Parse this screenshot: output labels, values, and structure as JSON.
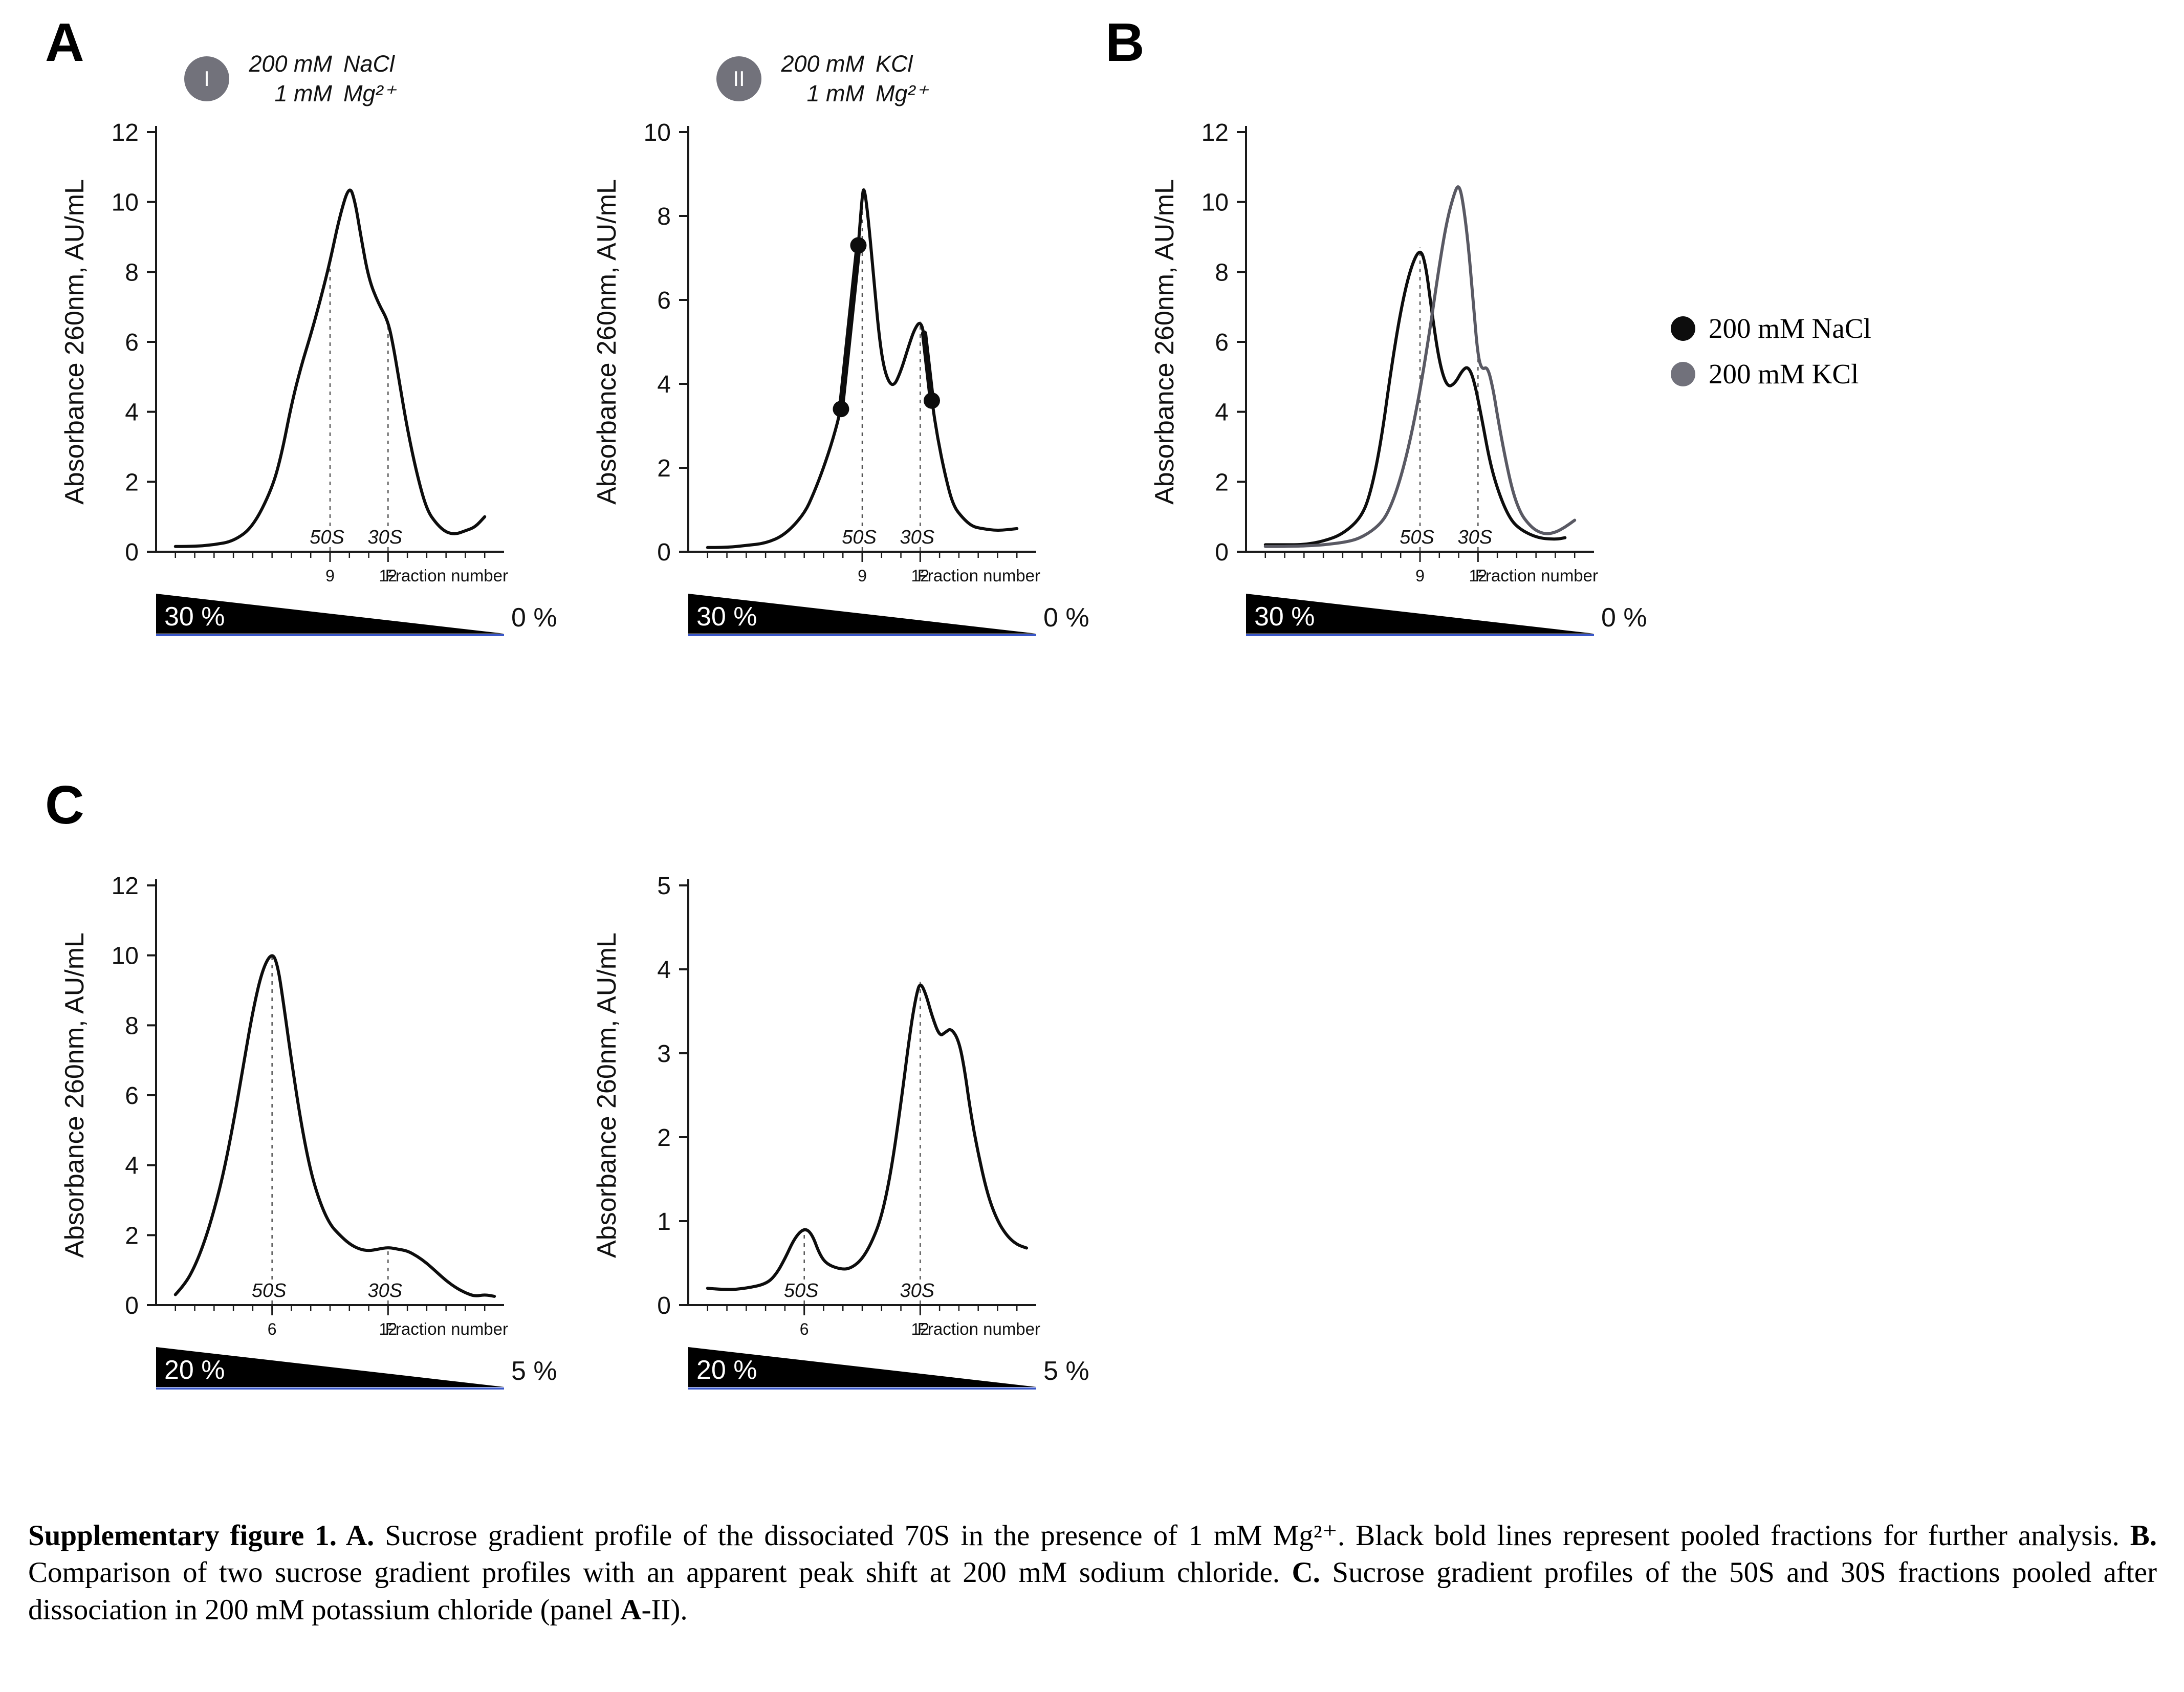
{
  "figure": {
    "panels": [
      "A",
      "B",
      "C"
    ]
  },
  "legend": {
    "items": [
      {
        "label": "200 mM NaCl",
        "color": "#0d0d0d"
      },
      {
        "label": "200 mM KCl",
        "color": "#71717b"
      }
    ]
  },
  "caption": {
    "runs": [
      {
        "t": "Supplementary figure 1. ",
        "b": 1
      },
      {
        "t": "A. ",
        "b": 1
      },
      {
        "t": "Sucrose gradient profile of the dissociated 70S in the presence of 1 mM Mg²⁺. Black bold lines represent pooled fractions for further analysis. ",
        "b": 0
      },
      {
        "t": "B. ",
        "b": 1
      },
      {
        "t": "Comparison of two sucrose gradient profiles with an apparent peak shift at 200 mM sodium chloride. ",
        "b": 0
      },
      {
        "t": "C. ",
        "b": 1
      },
      {
        "t": "Sucrose gradient profiles of the 50S and 30S fractions pooled after dissociation in 200 mM potassium chloride (panel ",
        "b": 0
      },
      {
        "t": "A",
        "b": 1
      },
      {
        "t": "-II).",
        "b": 0
      }
    ]
  },
  "chart_data": [
    {
      "type": "line",
      "panel": "A-I",
      "header": {
        "badge": "I",
        "rows": [
          [
            "200 mM",
            "NaCl"
          ],
          [
            "1 mM",
            "Mg²⁺"
          ]
        ]
      },
      "ylabel": "Absorbance 260nm, AU/mL",
      "xlabel": "Fraction number",
      "ylim": [
        0,
        12
      ],
      "yticks": [
        0,
        2,
        4,
        6,
        8,
        10,
        12
      ],
      "xlim": [
        0,
        18
      ],
      "xticks": [
        9,
        12
      ],
      "annotations": [
        {
          "x": 9,
          "label": "50S"
        },
        {
          "x": 12,
          "label": "30S"
        }
      ],
      "series": [
        {
          "name": "200 mM NaCl / 1 mM Mg2+",
          "color": "#0d0d0d",
          "width": 6,
          "points": [
            [
              1,
              0.15
            ],
            [
              2,
              0.15
            ],
            [
              3,
              0.2
            ],
            [
              4,
              0.3
            ],
            [
              5,
              0.7
            ],
            [
              6,
              1.8
            ],
            [
              6.5,
              2.8
            ],
            [
              7,
              4.2
            ],
            [
              7.5,
              5.3
            ],
            [
              8,
              6.2
            ],
            [
              8.5,
              7.2
            ],
            [
              9,
              8.3
            ],
            [
              9.5,
              9.6
            ],
            [
              10,
              10.5
            ],
            [
              10.3,
              10.0
            ],
            [
              10.6,
              9.0
            ],
            [
              11,
              7.8
            ],
            [
              11.5,
              7.1
            ],
            [
              12,
              6.6
            ],
            [
              12.3,
              5.8
            ],
            [
              12.6,
              4.8
            ],
            [
              13,
              3.5
            ],
            [
              13.5,
              2.2
            ],
            [
              14,
              1.2
            ],
            [
              14.5,
              0.8
            ],
            [
              15,
              0.55
            ],
            [
              15.5,
              0.5
            ],
            [
              16,
              0.6
            ],
            [
              16.5,
              0.7
            ],
            [
              17,
              1.0
            ]
          ]
        }
      ],
      "gradient": {
        "left": "30 %",
        "right": "0 %"
      }
    },
    {
      "type": "line",
      "panel": "A-II",
      "header": {
        "badge": "II",
        "rows": [
          [
            "200 mM",
            "KCl"
          ],
          [
            "1 mM",
            "Mg²⁺"
          ]
        ]
      },
      "ylabel": "Absorbance 260nm, AU/mL",
      "xlabel": "Fraction number",
      "ylim": [
        0,
        10
      ],
      "yticks": [
        0,
        2,
        4,
        6,
        8,
        10
      ],
      "xlim": [
        0,
        18
      ],
      "xticks": [
        9,
        12
      ],
      "annotations": [
        {
          "x": 9,
          "label": "50S"
        },
        {
          "x": 12,
          "label": "30S"
        }
      ],
      "series": [
        {
          "name": "200 mM KCl / 1 mM Mg2+",
          "color": "#0d0d0d",
          "width": 6,
          "points": [
            [
              1,
              0.1
            ],
            [
              2,
              0.1
            ],
            [
              3,
              0.15
            ],
            [
              4,
              0.2
            ],
            [
              5,
              0.4
            ],
            [
              6,
              0.9
            ],
            [
              6.5,
              1.4
            ],
            [
              7,
              2.0
            ],
            [
              7.5,
              2.7
            ],
            [
              7.9,
              3.4
            ],
            [
              8.3,
              4.8
            ],
            [
              8.6,
              6.3
            ],
            [
              8.8,
              7.3
            ],
            [
              9,
              8.5
            ],
            [
              9.1,
              8.7
            ],
            [
              9.3,
              8.0
            ],
            [
              9.6,
              6.5
            ],
            [
              9.9,
              5.0
            ],
            [
              10.2,
              4.2
            ],
            [
              10.6,
              3.9
            ],
            [
              11,
              4.3
            ],
            [
              11.4,
              4.9
            ],
            [
              11.7,
              5.3
            ],
            [
              12,
              5.5
            ],
            [
              12.2,
              5.2
            ],
            [
              12.6,
              3.6
            ],
            [
              12.9,
              2.7
            ],
            [
              13.3,
              1.8
            ],
            [
              13.7,
              1.1
            ],
            [
              14.2,
              0.8
            ],
            [
              14.7,
              0.6
            ],
            [
              15.2,
              0.55
            ],
            [
              16,
              0.5
            ],
            [
              17,
              0.55
            ]
          ]
        }
      ],
      "markers": [
        [
          7.9,
          3.4
        ],
        [
          8.8,
          7.3
        ],
        [
          12.6,
          3.6
        ]
      ],
      "bold_segments": [
        [
          [
            7.9,
            3.4
          ],
          [
            8.8,
            7.3
          ]
        ],
        [
          [
            12.2,
            5.2
          ],
          [
            12.6,
            3.6
          ]
        ]
      ],
      "gradient": {
        "left": "30 %",
        "right": "0 %"
      }
    },
    {
      "type": "line",
      "panel": "B",
      "ylabel": "Absorbance 260nm, AU/mL",
      "xlabel": "Fraction number",
      "ylim": [
        0,
        12
      ],
      "yticks": [
        0,
        2,
        4,
        6,
        8,
        10,
        12
      ],
      "xlim": [
        0,
        18
      ],
      "xticks": [
        9,
        12
      ],
      "annotations": [
        {
          "x": 9,
          "label": "50S",
          "series": 0
        },
        {
          "x": 12,
          "label": "30S",
          "series": 1
        }
      ],
      "series": [
        {
          "name": "200 mM NaCl",
          "color": "#0d0d0d",
          "width": 6,
          "points": [
            [
              1,
              0.2
            ],
            [
              2,
              0.2
            ],
            [
              3,
              0.2
            ],
            [
              4,
              0.3
            ],
            [
              5,
              0.5
            ],
            [
              6,
              1.0
            ],
            [
              6.5,
              1.8
            ],
            [
              7,
              3.2
            ],
            [
              7.5,
              5.2
            ],
            [
              8,
              6.9
            ],
            [
              8.5,
              8.1
            ],
            [
              9,
              8.7
            ],
            [
              9.3,
              8.2
            ],
            [
              9.6,
              6.9
            ],
            [
              10,
              5.4
            ],
            [
              10.4,
              4.7
            ],
            [
              10.8,
              4.8
            ],
            [
              11.2,
              5.2
            ],
            [
              11.5,
              5.3
            ],
            [
              11.8,
              4.9
            ],
            [
              12.2,
              3.8
            ],
            [
              12.6,
              2.6
            ],
            [
              13,
              1.8
            ],
            [
              13.5,
              1.1
            ],
            [
              14,
              0.7
            ],
            [
              15,
              0.4
            ],
            [
              16,
              0.35
            ],
            [
              16.5,
              0.4
            ]
          ]
        },
        {
          "name": "200 mM KCl",
          "color": "#595963",
          "width": 6,
          "points": [
            [
              1,
              0.15
            ],
            [
              3,
              0.15
            ],
            [
              5,
              0.25
            ],
            [
              6,
              0.4
            ],
            [
              7,
              0.8
            ],
            [
              7.5,
              1.3
            ],
            [
              8,
              2.1
            ],
            [
              8.5,
              3.2
            ],
            [
              9,
              4.6
            ],
            [
              9.5,
              6.3
            ],
            [
              10,
              8.2
            ],
            [
              10.4,
              9.5
            ],
            [
              10.8,
              10.3
            ],
            [
              11,
              10.5
            ],
            [
              11.2,
              10.1
            ],
            [
              11.5,
              8.8
            ],
            [
              11.8,
              6.8
            ],
            [
              12,
              5.6
            ],
            [
              12.2,
              5.2
            ],
            [
              12.5,
              5.3
            ],
            [
              12.8,
              4.6
            ],
            [
              13,
              3.9
            ],
            [
              13.4,
              2.7
            ],
            [
              13.8,
              1.7
            ],
            [
              14.2,
              1.1
            ],
            [
              14.6,
              0.8
            ],
            [
              15,
              0.6
            ],
            [
              15.5,
              0.5
            ],
            [
              16,
              0.55
            ],
            [
              16.5,
              0.7
            ],
            [
              17,
              0.9
            ]
          ]
        }
      ],
      "gradient": {
        "left": "30 %",
        "right": "0 %"
      }
    },
    {
      "type": "line",
      "panel": "C-left",
      "ylabel": "Absorbance 260nm, AU/mL",
      "xlabel": "Fraction number",
      "ylim": [
        0,
        12
      ],
      "yticks": [
        0,
        2,
        4,
        6,
        8,
        10,
        12
      ],
      "xlim": [
        0,
        18
      ],
      "xticks": [
        6,
        12
      ],
      "annotations": [
        {
          "x": 6,
          "label": "50S"
        },
        {
          "x": 12,
          "label": "30S"
        }
      ],
      "series": [
        {
          "name": "pooled 50S fraction",
          "color": "#0d0d0d",
          "width": 6,
          "points": [
            [
              1,
              0.3
            ],
            [
              1.5,
              0.6
            ],
            [
              2,
              1.1
            ],
            [
              2.5,
              1.8
            ],
            [
              3,
              2.7
            ],
            [
              3.5,
              3.8
            ],
            [
              4,
              5.2
            ],
            [
              4.5,
              6.8
            ],
            [
              5,
              8.4
            ],
            [
              5.5,
              9.6
            ],
            [
              6,
              10.1
            ],
            [
              6.3,
              9.7
            ],
            [
              6.6,
              8.6
            ],
            [
              7,
              7.0
            ],
            [
              7.5,
              5.2
            ],
            [
              8,
              3.8
            ],
            [
              8.5,
              2.9
            ],
            [
              9,
              2.3
            ],
            [
              9.5,
              2.0
            ],
            [
              10,
              1.75
            ],
            [
              10.5,
              1.6
            ],
            [
              11,
              1.55
            ],
            [
              11.5,
              1.6
            ],
            [
              12,
              1.65
            ],
            [
              12.5,
              1.6
            ],
            [
              13,
              1.55
            ],
            [
              13.5,
              1.4
            ],
            [
              14,
              1.2
            ],
            [
              14.5,
              0.95
            ],
            [
              15,
              0.7
            ],
            [
              15.5,
              0.5
            ],
            [
              16,
              0.35
            ],
            [
              16.5,
              0.25
            ],
            [
              17,
              0.3
            ],
            [
              17.5,
              0.25
            ]
          ]
        }
      ],
      "gradient": {
        "left": "20 %",
        "right": "5 %"
      }
    },
    {
      "type": "line",
      "panel": "C-right",
      "ylabel": "Absorbance 260nm, AU/mL",
      "xlabel": "Fraction number",
      "ylim": [
        0,
        5
      ],
      "yticks": [
        0,
        1,
        2,
        3,
        4,
        5
      ],
      "xlim": [
        0,
        18
      ],
      "xticks": [
        6,
        12
      ],
      "annotations": [
        {
          "x": 6,
          "label": "50S"
        },
        {
          "x": 12,
          "label": "30S"
        }
      ],
      "series": [
        {
          "name": "pooled 30S fraction",
          "color": "#0d0d0d",
          "width": 6,
          "points": [
            [
              1,
              0.2
            ],
            [
              2,
              0.18
            ],
            [
              3,
              0.2
            ],
            [
              4,
              0.25
            ],
            [
              4.5,
              0.35
            ],
            [
              5,
              0.55
            ],
            [
              5.5,
              0.8
            ],
            [
              6,
              0.92
            ],
            [
              6.4,
              0.85
            ],
            [
              6.8,
              0.6
            ],
            [
              7.2,
              0.48
            ],
            [
              8,
              0.42
            ],
            [
              8.5,
              0.45
            ],
            [
              9,
              0.55
            ],
            [
              9.5,
              0.75
            ],
            [
              10,
              1.05
            ],
            [
              10.5,
              1.6
            ],
            [
              11,
              2.4
            ],
            [
              11.5,
              3.3
            ],
            [
              11.8,
              3.7
            ],
            [
              12,
              3.85
            ],
            [
              12.3,
              3.7
            ],
            [
              12.6,
              3.45
            ],
            [
              13,
              3.2
            ],
            [
              13.3,
              3.25
            ],
            [
              13.6,
              3.3
            ],
            [
              14,
              3.15
            ],
            [
              14.3,
              2.8
            ],
            [
              14.6,
              2.3
            ],
            [
              15,
              1.8
            ],
            [
              15.5,
              1.3
            ],
            [
              16,
              1.0
            ],
            [
              16.5,
              0.82
            ],
            [
              17,
              0.72
            ],
            [
              17.5,
              0.68
            ]
          ]
        }
      ],
      "gradient": {
        "left": "20 %",
        "right": "5 %"
      }
    }
  ]
}
